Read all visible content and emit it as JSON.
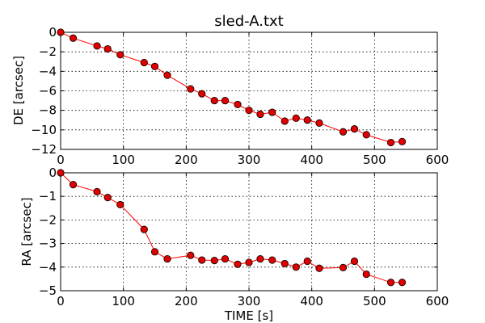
{
  "chart_data": [
    {
      "type": "line",
      "title": "sled-A.txt",
      "xlabel": "",
      "ylabel": "DE [arcsec]",
      "xlim": [
        0,
        600
      ],
      "ylim": [
        -12,
        0
      ],
      "xticks": [
        0,
        100,
        200,
        300,
        400,
        500,
        600
      ],
      "yticks": [
        0,
        -2,
        -4,
        -6,
        -8,
        -10,
        -12
      ],
      "xtick_labels": [
        "0",
        "100",
        "200",
        "300",
        "400",
        "500",
        "600"
      ],
      "ytick_labels": [
        "0",
        "−2",
        "−4",
        "−6",
        "−8",
        "−10",
        "−12"
      ],
      "grid": true,
      "color": "#ff0000",
      "marker_color": "#e00000",
      "x": [
        0,
        20,
        58,
        75,
        95,
        133,
        150,
        170,
        207,
        225,
        245,
        262,
        282,
        300,
        318,
        337,
        357,
        375,
        393,
        412,
        450,
        468,
        487,
        526,
        544
      ],
      "y": [
        0,
        -0.6,
        -1.4,
        -1.7,
        -2.3,
        -3.1,
        -3.5,
        -4.4,
        -5.8,
        -6.3,
        -7.0,
        -7.0,
        -7.4,
        -8.0,
        -8.4,
        -8.2,
        -9.1,
        -8.8,
        -9.0,
        -9.3,
        -10.2,
        -9.9,
        -10.5,
        -11.3,
        -11.2
      ]
    },
    {
      "type": "line",
      "title": "",
      "xlabel": "TIME [s]",
      "ylabel": "RA [arcsec]",
      "xlim": [
        0,
        600
      ],
      "ylim": [
        -5,
        0
      ],
      "xticks": [
        0,
        100,
        200,
        300,
        400,
        500,
        600
      ],
      "yticks": [
        0,
        -1,
        -2,
        -3,
        -4,
        -5
      ],
      "xtick_labels": [
        "0",
        "100",
        "200",
        "300",
        "400",
        "500",
        "600"
      ],
      "ytick_labels": [
        "0",
        "−1",
        "−2",
        "−3",
        "−4",
        "−5"
      ],
      "grid": true,
      "color": "#ff0000",
      "marker_color": "#e00000",
      "x": [
        0,
        20,
        58,
        75,
        95,
        133,
        150,
        170,
        207,
        225,
        245,
        262,
        282,
        300,
        318,
        337,
        357,
        375,
        393,
        412,
        450,
        468,
        487,
        526,
        544
      ],
      "y": [
        0,
        -0.5,
        -0.8,
        -1.05,
        -1.35,
        -2.4,
        -3.35,
        -3.65,
        -3.5,
        -3.7,
        -3.72,
        -3.65,
        -3.88,
        -3.8,
        -3.65,
        -3.7,
        -3.85,
        -4.0,
        -3.75,
        -4.05,
        -4.02,
        -3.75,
        -4.3,
        -4.65,
        -4.65
      ]
    }
  ]
}
